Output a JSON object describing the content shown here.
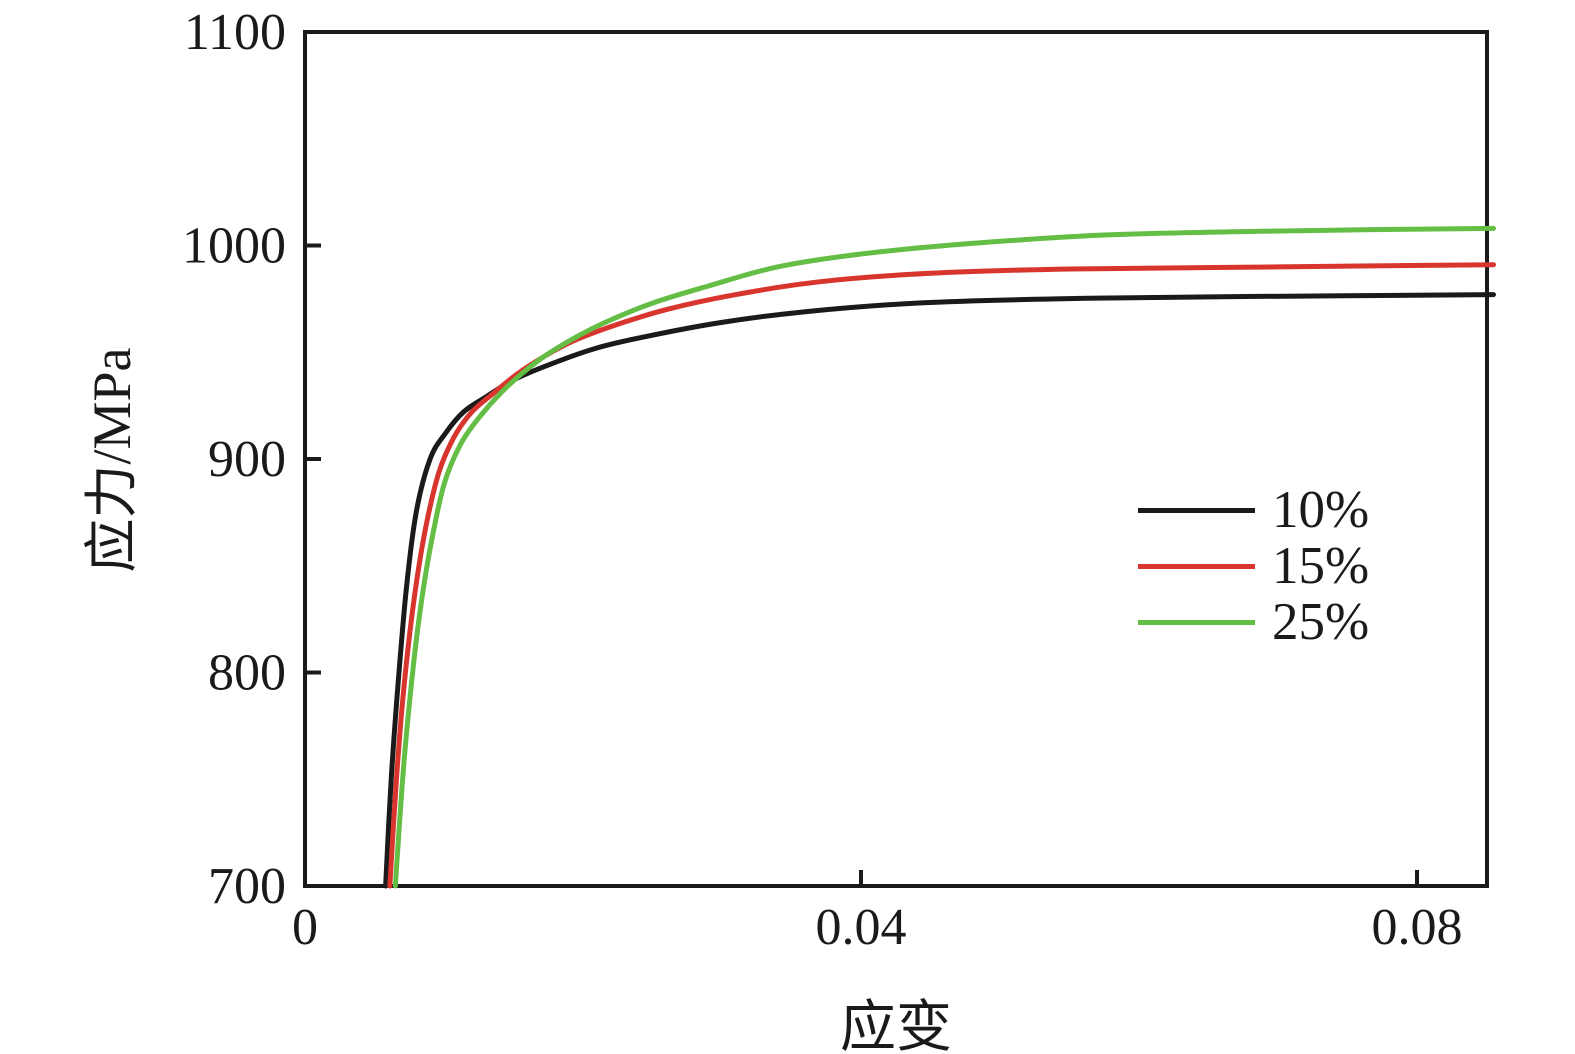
{
  "chart_data": {
    "type": "line",
    "title": "",
    "xlabel": "应变",
    "ylabel": "应力/MPa",
    "xlim": [
      0,
      0.085
    ],
    "ylim": [
      700,
      1100
    ],
    "grid": false,
    "legend_position": "right-middle",
    "x_ticks": [
      {
        "value": 0,
        "label": "0"
      },
      {
        "value": 0.04,
        "label": "0.04"
      },
      {
        "value": 0.08,
        "label": "0.08"
      }
    ],
    "y_ticks": [
      {
        "value": 700,
        "label": "700"
      },
      {
        "value": 800,
        "label": "800"
      },
      {
        "value": 900,
        "label": "900"
      },
      {
        "value": 1000,
        "label": "1000"
      },
      {
        "value": 1100,
        "label": "1100"
      }
    ],
    "series": [
      {
        "name": "10%",
        "color": "#1a1a1a",
        "points": [
          [
            0.0058,
            700
          ],
          [
            0.0062,
            750
          ],
          [
            0.0067,
            795
          ],
          [
            0.0073,
            840
          ],
          [
            0.008,
            875
          ],
          [
            0.009,
            900
          ],
          [
            0.0101,
            912
          ],
          [
            0.0114,
            922
          ],
          [
            0.013,
            929
          ],
          [
            0.015,
            937
          ],
          [
            0.0175,
            944
          ],
          [
            0.021,
            952
          ],
          [
            0.025,
            958
          ],
          [
            0.03,
            964
          ],
          [
            0.036,
            969
          ],
          [
            0.044,
            973
          ],
          [
            0.054,
            975
          ],
          [
            0.066,
            976
          ],
          [
            0.0855,
            977
          ]
        ]
      },
      {
        "name": "15%",
        "color": "#d8352e",
        "points": [
          [
            0.0061,
            700
          ],
          [
            0.0066,
            752
          ],
          [
            0.0071,
            792
          ],
          [
            0.0078,
            832
          ],
          [
            0.0086,
            865
          ],
          [
            0.0096,
            893
          ],
          [
            0.0107,
            910
          ],
          [
            0.012,
            922
          ],
          [
            0.0136,
            931
          ],
          [
            0.0153,
            940
          ],
          [
            0.0172,
            948
          ],
          [
            0.0192,
            955
          ],
          [
            0.022,
            962
          ],
          [
            0.026,
            970
          ],
          [
            0.031,
            977
          ],
          [
            0.037,
            983
          ],
          [
            0.045,
            987
          ],
          [
            0.055,
            989
          ],
          [
            0.07,
            990
          ],
          [
            0.0855,
            991
          ]
        ]
      },
      {
        "name": "25%",
        "color": "#64bd45",
        "points": [
          [
            0.0065,
            700
          ],
          [
            0.007,
            748
          ],
          [
            0.0075,
            785
          ],
          [
            0.0082,
            825
          ],
          [
            0.009,
            858
          ],
          [
            0.01,
            888
          ],
          [
            0.0112,
            907
          ],
          [
            0.0126,
            920
          ],
          [
            0.0141,
            931
          ],
          [
            0.0156,
            940
          ],
          [
            0.0172,
            948
          ],
          [
            0.0192,
            956
          ],
          [
            0.0216,
            964
          ],
          [
            0.025,
            973
          ],
          [
            0.029,
            981
          ],
          [
            0.034,
            990
          ],
          [
            0.04,
            996
          ],
          [
            0.048,
            1001
          ],
          [
            0.058,
            1005
          ],
          [
            0.072,
            1007
          ],
          [
            0.0855,
            1008
          ]
        ]
      }
    ]
  },
  "colors": {
    "background": "#ffffff",
    "axis": "#1a1a1a",
    "text": "#1a1a1a"
  }
}
